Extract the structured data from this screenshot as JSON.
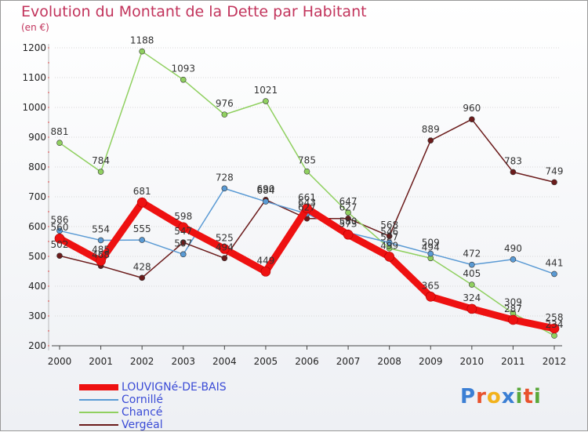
{
  "title": "Evolution du Montant de la Dette par Habitant",
  "subtitle": "(en €)",
  "logo": {
    "letters": [
      "P",
      "r",
      "o",
      "x",
      "i",
      "t",
      "i"
    ],
    "colors": [
      "#3b7fd4",
      "#e8522d",
      "#f2b21c",
      "#3b7fd4",
      "#5aa83a",
      "#e8522d",
      "#5aa83a"
    ]
  },
  "chart_data": {
    "type": "line",
    "title": "Evolution du Montant de la Dette par Habitant",
    "ylabel": "(en €)",
    "x": [
      "2000",
      "2001",
      "2002",
      "2003",
      "2004",
      "2005",
      "2006",
      "2007",
      "2008",
      "2009",
      "2010",
      "2011",
      "2012"
    ],
    "yticks": [
      200,
      300,
      400,
      500,
      600,
      700,
      800,
      900,
      1000,
      1100,
      1200
    ],
    "ylim": [
      200,
      1200
    ],
    "grid": true,
    "legend_position": "bottom-left",
    "series": [
      {
        "name": "Vergéal",
        "color": "#6b1b1b",
        "values": [
          502,
          468,
          428,
          547,
          494,
          690,
          627,
          627,
          568,
          889,
          960,
          783,
          749
        ],
        "labels": [
          "502",
          "468",
          "428",
          "547",
          "494",
          "690",
          "627",
          "627",
          "568",
          "889",
          "960",
          "783",
          "749"
        ]
      },
      {
        "name": "Chancé",
        "color": "#90d060",
        "values": [
          881,
          784,
          1188,
          1093,
          976,
          1021,
          785,
          647,
          527,
          494,
          405,
          309,
          234
        ],
        "labels": [
          "881",
          "784",
          "1188",
          "1093",
          "976",
          "1021",
          "785",
          "647",
          "527",
          "494",
          "405",
          "309",
          "234"
        ]
      },
      {
        "name": "Cornillé",
        "color": "#5a9ad4",
        "values": [
          586,
          554,
          555,
          507,
          728,
          684,
          643,
          580,
          546,
          509,
          472,
          490,
          441
        ],
        "labels": [
          "586",
          "554",
          "555",
          "507",
          "728",
          "684",
          "643",
          "580",
          "546",
          "509",
          "472",
          "490",
          "441"
        ]
      },
      {
        "name": "LOUVIGNé-DE-BAIS",
        "color": "#ee1111",
        "values": [
          560,
          485,
          681,
          598,
          525,
          449,
          661,
          573,
          499,
          365,
          324,
          287,
          258
        ],
        "labels": [
          "560",
          "485",
          "681",
          "598",
          "525",
          "449",
          "661",
          "573",
          "499",
          "365",
          "324",
          "287",
          "258"
        ]
      }
    ]
  }
}
